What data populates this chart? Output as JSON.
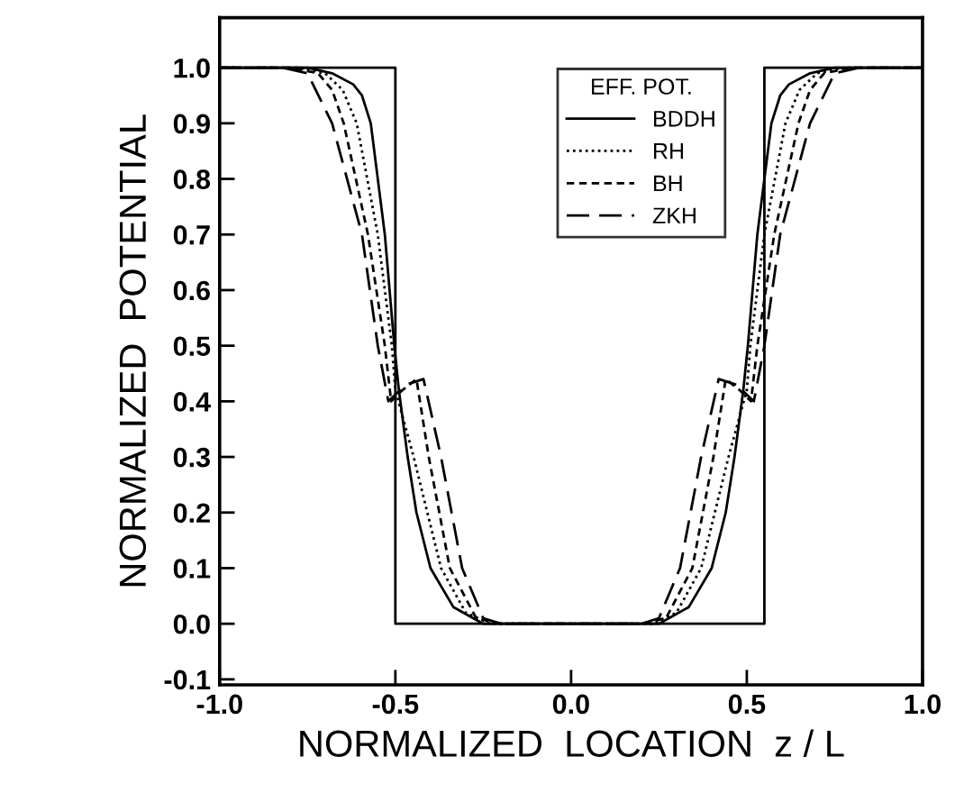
{
  "chart_data": {
    "type": "line",
    "xlabel": "NORMALIZED  LOCATION  z / L",
    "ylabel": "NORMALIZED  POTENTIAL",
    "legend_title": "EFF. POT.",
    "xlim": [
      -1.0,
      1.0
    ],
    "xticks": [
      {
        "value": -1,
        "label": "-1.0"
      },
      -0.5,
      {
        "value": 0,
        "label": "0.0"
      },
      0.5,
      {
        "value": 1,
        "label": "1.0"
      }
    ],
    "ylim": [
      -0.11,
      1.09
    ],
    "yticks": [
      -0.1,
      {
        "value": 0,
        "label": "0.0"
      },
      0.1,
      0.2,
      0.3,
      0.4,
      0.5,
      0.6,
      0.7,
      0.8,
      0.9,
      {
        "value": 1,
        "label": "1.0"
      }
    ],
    "grid": false,
    "legend": "top",
    "marker": "none",
    "series": [
      {
        "color": "#000000",
        "line_style": "solid",
        "x": [
          -1,
          -0.5,
          -0.5,
          0.55,
          0.55,
          1
        ],
        "values": [
          1,
          1,
          0,
          0,
          1,
          1
        ]
      },
      {
        "name": "BDDH",
        "color": "#000000",
        "line_style": "solid",
        "x": [
          -1,
          -0.75,
          -0.68,
          -0.62,
          -0.595,
          -0.57,
          -0.53,
          -0.503,
          -0.49,
          -0.465,
          -0.44,
          -0.4,
          -0.335,
          -0.25,
          0.25,
          0.335,
          0.4,
          0.44,
          0.465,
          0.49,
          0.503,
          0.53,
          0.57,
          0.595,
          0.62,
          0.68,
          0.75,
          1
        ],
        "values": [
          1,
          1,
          0.99,
          0.97,
          0.95,
          0.9,
          0.7,
          0.5,
          0.42,
          0.3,
          0.2,
          0.1,
          0.03,
          0,
          0,
          0.03,
          0.1,
          0.2,
          0.3,
          0.42,
          0.5,
          0.7,
          0.9,
          0.95,
          0.97,
          0.99,
          1,
          1
        ]
      },
      {
        "name": "RH",
        "color": "#000000",
        "line_style": "dotted",
        "x": [
          -1,
          -0.78,
          -0.7,
          -0.65,
          -0.61,
          -0.55,
          -0.51,
          -0.5,
          -0.448,
          -0.37,
          -0.3,
          -0.23,
          0.23,
          0.3,
          0.37,
          0.448,
          0.5,
          0.51,
          0.55,
          0.61,
          0.65,
          0.7,
          0.78,
          1
        ],
        "values": [
          1,
          1,
          0.99,
          0.96,
          0.9,
          0.7,
          0.5,
          0.42,
          0.3,
          0.1,
          0.02,
          0,
          0,
          0.02,
          0.1,
          0.3,
          0.42,
          0.5,
          0.7,
          0.9,
          0.96,
          0.99,
          1,
          1
        ]
      },
      {
        "name": "BH",
        "color": "#000000",
        "line_style": "dashed",
        "x": [
          -1,
          -0.8,
          -0.72,
          -0.68,
          -0.647,
          -0.578,
          -0.53,
          -0.512,
          -0.48,
          -0.44,
          -0.405,
          -0.345,
          -0.27,
          -0.2,
          0.2,
          0.27,
          0.345,
          0.405,
          0.44,
          0.48,
          0.512,
          0.53,
          0.578,
          0.647,
          0.68,
          0.72,
          0.8,
          1
        ],
        "values": [
          1,
          1,
          0.99,
          0.96,
          0.9,
          0.7,
          0.5,
          0.4,
          0.42,
          0.44,
          0.3,
          0.1,
          0.01,
          0,
          0,
          0.01,
          0.1,
          0.3,
          0.44,
          0.42,
          0.4,
          0.5,
          0.7,
          0.9,
          0.96,
          0.99,
          1,
          1
        ]
      },
      {
        "name": "ZKH",
        "color": "#000000",
        "line_style": "long dashed",
        "x": [
          -1,
          -0.82,
          -0.75,
          -0.68,
          -0.595,
          -0.55,
          -0.535,
          -0.52,
          -0.47,
          -0.42,
          -0.37,
          -0.31,
          -0.25,
          -0.2,
          0.2,
          0.25,
          0.31,
          0.37,
          0.42,
          0.47,
          0.52,
          0.535,
          0.55,
          0.595,
          0.68,
          0.75,
          0.82,
          1
        ],
        "values": [
          1,
          1,
          0.99,
          0.9,
          0.7,
          0.5,
          0.45,
          0.4,
          0.43,
          0.44,
          0.3,
          0.1,
          0.01,
          0,
          0,
          0.01,
          0.1,
          0.3,
          0.44,
          0.43,
          0.4,
          0.45,
          0.5,
          0.7,
          0.9,
          0.99,
          1,
          1
        ]
      }
    ]
  }
}
